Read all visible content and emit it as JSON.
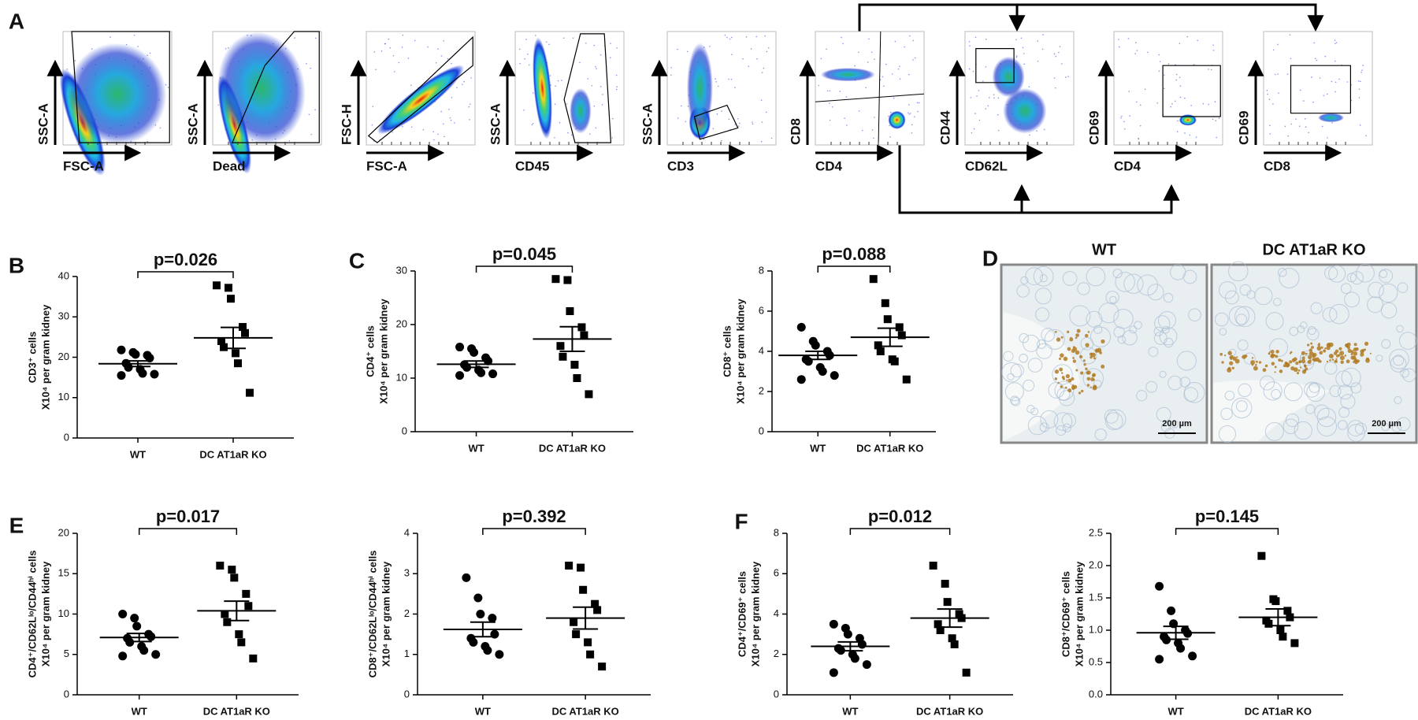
{
  "panels": [
    "A",
    "B",
    "C",
    "D",
    "E",
    "F"
  ],
  "flow_plots": [
    {
      "x_label": "FSC-A",
      "y_label": "SSC-A"
    },
    {
      "x_label": "Dead",
      "y_label": "SSC-A"
    },
    {
      "x_label": "FSC-A",
      "y_label": "FSC-H"
    },
    {
      "x_label": "CD45",
      "y_label": "SSC-A"
    },
    {
      "x_label": "CD3",
      "y_label": "SSC-A"
    },
    {
      "x_label": "CD4",
      "y_label": "CD8"
    },
    {
      "x_label": "CD62L",
      "y_label": "CD44"
    },
    {
      "x_label": "CD4",
      "y_label": "CD69"
    },
    {
      "x_label": "CD8",
      "y_label": "CD69"
    }
  ],
  "micrographs": [
    {
      "label": "WT",
      "scale_bar": "200 µm"
    },
    {
      "label": "DC AT1aR KO",
      "scale_bar": "200 µm"
    }
  ],
  "chart_data": [
    {
      "type": "dotplot",
      "ylabel": [
        "CD3⁺ cells",
        "X10⁴ per gram kidney"
      ],
      "annotation": "p=0.026",
      "categories": [
        "WT",
        "DC AT1aR KO"
      ],
      "ylim": [
        0,
        40
      ],
      "yticks": [
        0,
        10,
        20,
        30,
        40
      ],
      "color": "#000000",
      "groups": [
        {
          "marker": "circle",
          "values": [
            21.8,
            21.2,
            20.7,
            20.5,
            19.8,
            18.5,
            17.5,
            17.0,
            16.0,
            15.8,
            15.5
          ],
          "mean": 18.4,
          "sem": 0.7
        },
        {
          "marker": "square",
          "values": [
            37.8,
            37.2,
            34.5,
            27.5,
            26.0,
            24.0,
            22.5,
            21.0,
            18.5,
            11.2
          ],
          "mean": 24.8,
          "sem": 2.6
        }
      ]
    },
    {
      "type": "dotplot",
      "ylabel": [
        "CD4⁺ cells",
        "X10⁴ per gram kidney"
      ],
      "annotation": "p=0.045",
      "categories": [
        "WT",
        "DC AT1aR KO"
      ],
      "ylim": [
        0,
        30
      ],
      "yticks": [
        0,
        10,
        20,
        30
      ],
      "color": "#000000",
      "groups": [
        {
          "marker": "circle",
          "values": [
            15.8,
            15.5,
            14.8,
            13.8,
            13.2,
            12.5,
            12.0,
            11.5,
            11.0,
            10.8,
            10.5
          ],
          "mean": 12.6,
          "sem": 0.6
        },
        {
          "marker": "square",
          "values": [
            28.5,
            28.3,
            22.5,
            19.5,
            18.0,
            16.0,
            14.0,
            12.5,
            10.0,
            7.0
          ],
          "mean": 17.3,
          "sem": 2.3
        }
      ]
    },
    {
      "type": "dotplot",
      "ylabel": [
        "CD8⁺ cells",
        "X10⁴ per gram kidney"
      ],
      "annotation": "p=0.088",
      "categories": [
        "WT",
        "DC AT1aR KO"
      ],
      "ylim": [
        0,
        8
      ],
      "yticks": [
        0,
        2,
        4,
        6,
        8
      ],
      "color": "#000000",
      "groups": [
        {
          "marker": "circle",
          "values": [
            5.2,
            4.5,
            4.3,
            4.0,
            3.8,
            3.6,
            3.5,
            3.2,
            3.0,
            2.8,
            2.6
          ],
          "mean": 3.8,
          "sem": 0.2
        },
        {
          "marker": "square",
          "values": [
            7.6,
            6.4,
            5.6,
            5.2,
            4.8,
            4.3,
            4.0,
            3.6,
            3.5,
            2.6
          ],
          "mean": 4.7,
          "sem": 0.45
        }
      ]
    },
    {
      "type": "dotplot",
      "ylabel": [
        "CD4⁺/CD62Lˡᵒ/CD44ʰⁱ cells",
        "X10⁴ per gram kidney"
      ],
      "annotation": "p=0.017",
      "categories": [
        "WT",
        "DC AT1aR KO"
      ],
      "ylim": [
        0,
        20
      ],
      "yticks": [
        0,
        5,
        10,
        15,
        20
      ],
      "color": "#000000",
      "groups": [
        {
          "marker": "circle",
          "values": [
            10.0,
            9.5,
            8.5,
            7.5,
            7.2,
            7.0,
            6.5,
            6.0,
            5.5,
            5.0,
            4.8
          ],
          "mean": 7.1,
          "sem": 0.5
        },
        {
          "marker": "square",
          "values": [
            16.0,
            15.5,
            14.5,
            12.5,
            11.0,
            10.0,
            9.0,
            7.5,
            6.5,
            4.5
          ],
          "mean": 10.4,
          "sem": 1.2
        }
      ]
    },
    {
      "type": "dotplot",
      "ylabel": [
        "CD8⁺/CD62Lˡᵒ/CD44ʰⁱ cells",
        "X10⁴ per gram kidney"
      ],
      "annotation": "p=0.392",
      "categories": [
        "WT",
        "DC AT1aR KO"
      ],
      "ylim": [
        0,
        4
      ],
      "yticks": [
        0,
        1,
        2,
        3,
        4
      ],
      "color": "#000000",
      "groups": [
        {
          "marker": "circle",
          "values": [
            2.9,
            2.4,
            2.0,
            1.9,
            1.5,
            1.4,
            1.3,
            1.2,
            1.1,
            1.0
          ],
          "mean": 1.62,
          "sem": 0.18
        },
        {
          "marker": "square",
          "values": [
            3.2,
            3.15,
            2.6,
            2.25,
            2.1,
            1.8,
            1.5,
            1.3,
            1.0,
            0.7
          ],
          "mean": 1.9,
          "sem": 0.27
        }
      ]
    },
    {
      "type": "dotplot",
      "ylabel": [
        "CD4⁺/CD69⁺ cells",
        "X10⁴ per gram kidney"
      ],
      "annotation": "p=0.012",
      "categories": [
        "WT",
        "DC AT1aR KO"
      ],
      "ylim": [
        0,
        8
      ],
      "yticks": [
        0,
        2,
        4,
        6,
        8
      ],
      "color": "#000000",
      "groups": [
        {
          "marker": "circle",
          "values": [
            3.5,
            3.3,
            3.0,
            2.8,
            2.5,
            2.3,
            2.2,
            2.0,
            1.8,
            1.5,
            1.1
          ],
          "mean": 2.4,
          "sem": 0.22
        },
        {
          "marker": "square",
          "values": [
            6.4,
            5.5,
            4.6,
            4.0,
            3.8,
            3.5,
            3.2,
            2.8,
            2.5,
            1.1
          ],
          "mean": 3.8,
          "sem": 0.45
        }
      ]
    },
    {
      "type": "dotplot",
      "ylabel": [
        "CD8⁺/CD69⁺ cells",
        "X10⁴ per gram kidney"
      ],
      "annotation": "p=0.145",
      "categories": [
        "WT",
        "DC AT1aR KO"
      ],
      "ylim": [
        0,
        2.5
      ],
      "yticks": [
        {
          "value": 0,
          "label": "0.0"
        },
        0.5,
        {
          "value": 1,
          "label": "1.0"
        },
        1.5,
        {
          "value": 2,
          "label": "2.0"
        },
        2.5
      ],
      "color": "#000000",
      "groups": [
        {
          "marker": "circle",
          "values": [
            1.68,
            1.3,
            1.1,
            1.0,
            0.95,
            0.9,
            0.85,
            0.8,
            0.72,
            0.6,
            0.55
          ],
          "mean": 0.96,
          "sem": 0.1
        },
        {
          "marker": "square",
          "values": [
            2.15,
            1.48,
            1.45,
            1.3,
            1.2,
            1.15,
            1.1,
            1.0,
            0.9,
            0.8
          ],
          "mean": 1.2,
          "sem": 0.13
        }
      ]
    }
  ]
}
